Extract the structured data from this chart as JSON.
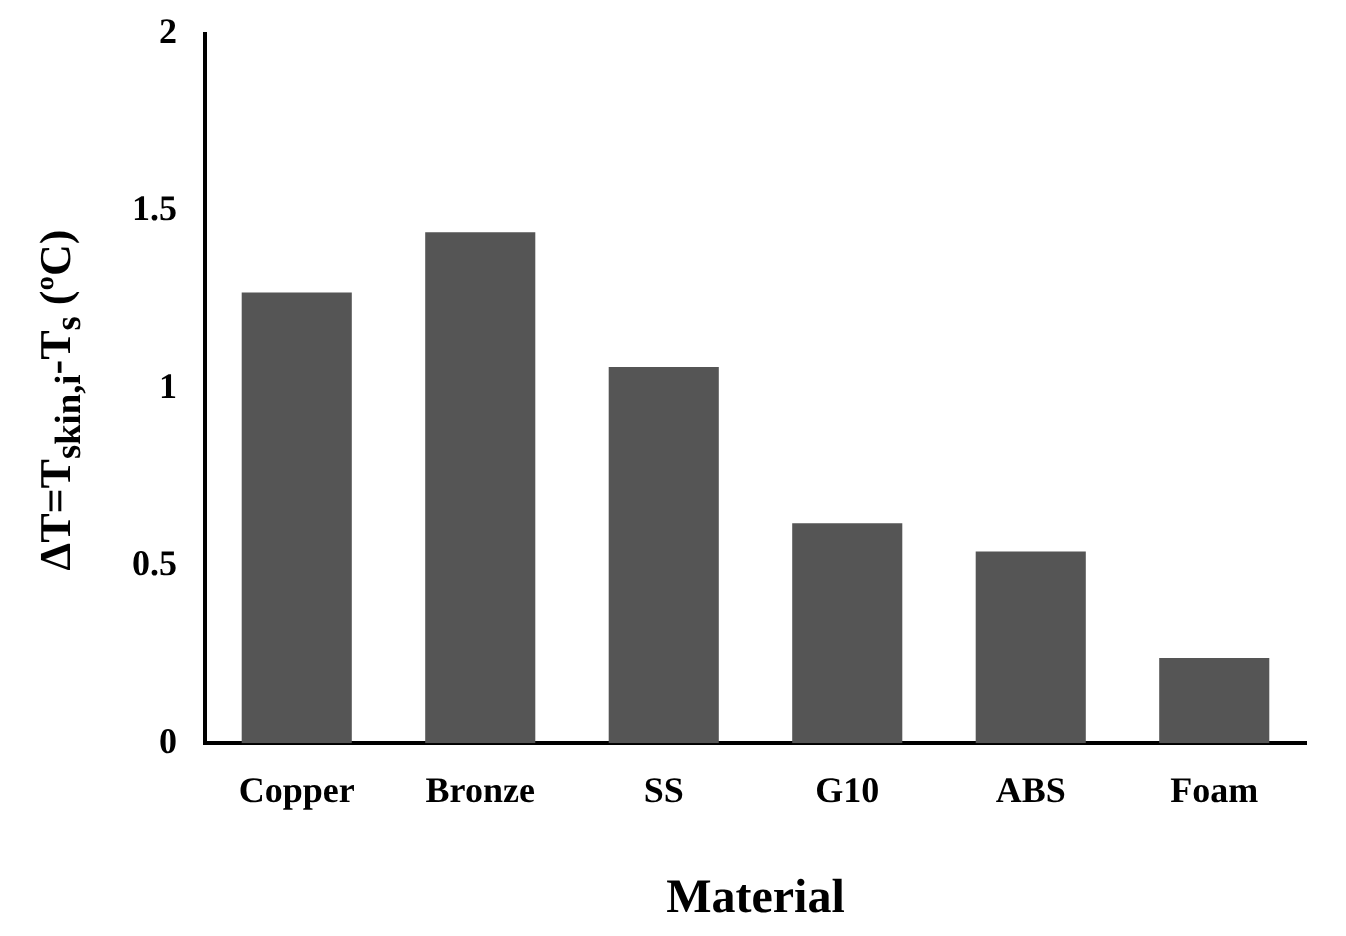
{
  "chart_data": {
    "type": "bar",
    "xlabel": "Material",
    "ylabel": "ΔT=T$_{skin,i}$-T$_{s}$ (ºC)",
    "categories": [
      "Copper",
      "Bronze",
      "SS",
      "G10",
      "ABS",
      "Foam"
    ],
    "values": [
      1.27,
      1.44,
      1.06,
      0.62,
      0.54,
      0.24
    ],
    "color": "#555555",
    "ylim": [
      0,
      2
    ],
    "yticks": [
      0,
      0.5,
      1,
      1.5,
      2
    ],
    "grid": false,
    "legend": false
  }
}
